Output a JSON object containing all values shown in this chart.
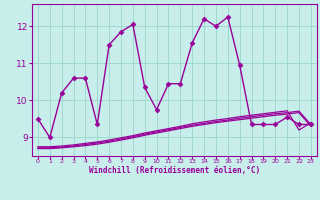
{
  "xlabel": "Windchill (Refroidissement éolien,°C)",
  "xlim": [
    -0.5,
    23.5
  ],
  "ylim": [
    8.5,
    12.6
  ],
  "yticks": [
    9,
    10,
    11,
    12
  ],
  "xticks": [
    0,
    1,
    2,
    3,
    4,
    5,
    6,
    7,
    8,
    9,
    10,
    11,
    12,
    13,
    14,
    15,
    16,
    17,
    18,
    19,
    20,
    21,
    22,
    23
  ],
  "background_color": "#c8eeeb",
  "grid_color": "#a0d8d0",
  "line_color": "#990099",
  "lines": [
    {
      "x": [
        0,
        1,
        2,
        3,
        4,
        5,
        6,
        7,
        8,
        9,
        10,
        11,
        12,
        13,
        14,
        15,
        16,
        17,
        18,
        19,
        20,
        21,
        22,
        23
      ],
      "y": [
        9.5,
        9.0,
        10.2,
        10.6,
        10.6,
        9.35,
        11.5,
        11.85,
        12.05,
        10.35,
        9.75,
        10.45,
        10.45,
        11.55,
        12.2,
        12.0,
        12.25,
        10.95,
        9.35,
        9.35,
        9.35,
        9.55,
        9.35,
        9.35
      ],
      "marker": "D",
      "markersize": 2.5,
      "linewidth": 1.0,
      "with_marker": true
    },
    {
      "x": [
        0,
        1,
        2,
        3,
        4,
        5,
        6,
        7,
        8,
        9,
        10,
        11,
        12,
        13,
        14,
        15,
        16,
        17,
        18,
        19,
        20,
        21,
        22,
        23
      ],
      "y": [
        8.7,
        8.7,
        8.72,
        8.75,
        8.78,
        8.82,
        8.87,
        8.93,
        8.99,
        9.06,
        9.12,
        9.18,
        9.24,
        9.3,
        9.35,
        9.4,
        9.44,
        9.48,
        9.52,
        9.56,
        9.6,
        9.63,
        9.67,
        9.3
      ],
      "marker": null,
      "markersize": 0,
      "linewidth": 0.9,
      "with_marker": false
    },
    {
      "x": [
        0,
        1,
        2,
        3,
        4,
        5,
        6,
        7,
        8,
        9,
        10,
        11,
        12,
        13,
        14,
        15,
        16,
        17,
        18,
        19,
        20,
        21,
        22,
        23
      ],
      "y": [
        8.72,
        8.72,
        8.74,
        8.77,
        8.81,
        8.85,
        8.9,
        8.96,
        9.02,
        9.09,
        9.15,
        9.21,
        9.27,
        9.33,
        9.38,
        9.43,
        9.47,
        9.52,
        9.56,
        9.6,
        9.64,
        9.67,
        9.71,
        9.35
      ],
      "marker": null,
      "markersize": 0,
      "linewidth": 0.9,
      "with_marker": false
    },
    {
      "x": [
        0,
        1,
        2,
        3,
        4,
        5,
        6,
        7,
        8,
        9,
        10,
        11,
        12,
        13,
        14,
        15,
        16,
        17,
        18,
        19,
        20,
        21,
        22,
        23
      ],
      "y": [
        8.75,
        8.75,
        8.77,
        8.8,
        8.84,
        8.88,
        8.93,
        8.99,
        9.05,
        9.12,
        9.18,
        9.24,
        9.3,
        9.37,
        9.42,
        9.47,
        9.51,
        9.56,
        9.6,
        9.64,
        9.68,
        9.72,
        9.2,
        9.4
      ],
      "marker": null,
      "markersize": 0,
      "linewidth": 0.9,
      "with_marker": false
    }
  ]
}
